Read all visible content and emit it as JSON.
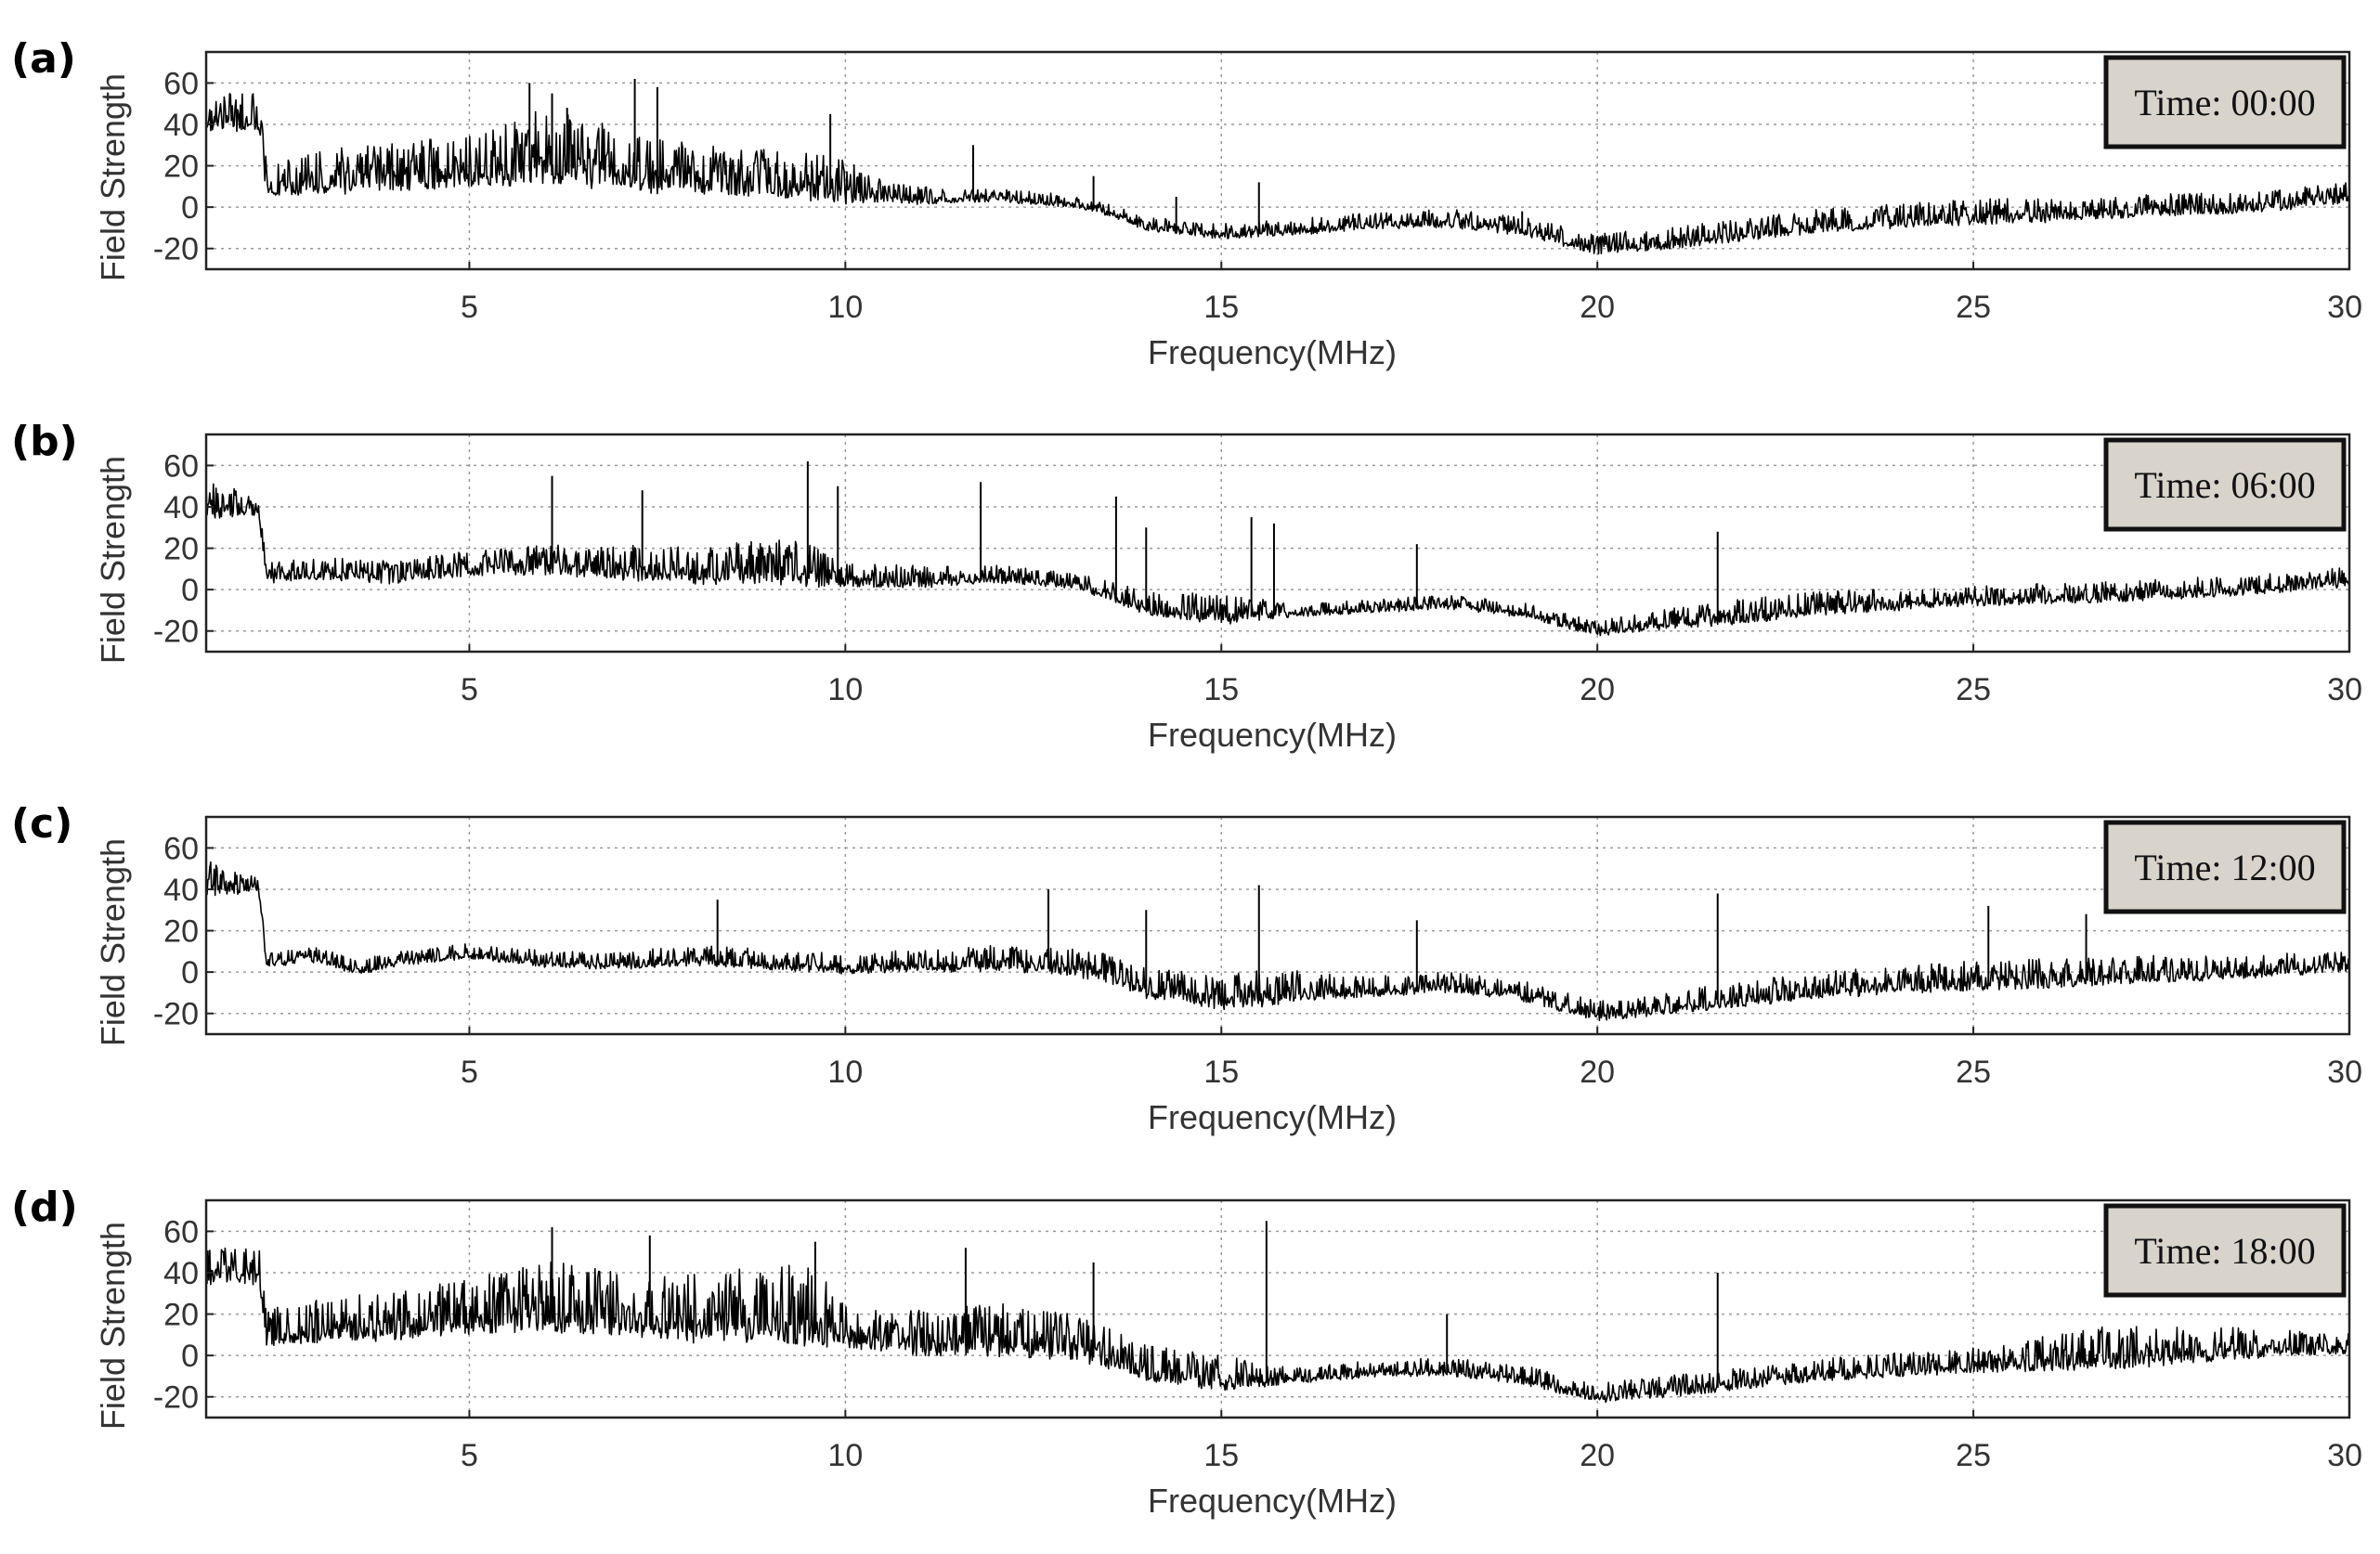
{
  "chart_data": [
    {
      "type": "line",
      "panel_label": "(a)",
      "annotation": "Time: 00:00",
      "xlabel": "Frequency(MHz)",
      "ylabel": "Field Strength",
      "xlim": [
        1.5,
        30
      ],
      "ylim": [
        -30,
        75
      ],
      "xticks": [
        5,
        10,
        15,
        20,
        25,
        30
      ],
      "yticks": [
        -20,
        0,
        20,
        40,
        60
      ],
      "grid": true,
      "baseline": [
        [
          1.5,
          40
        ],
        [
          2.2,
          40
        ],
        [
          2.3,
          8
        ],
        [
          3,
          10
        ],
        [
          4,
          12
        ],
        [
          5,
          15
        ],
        [
          6,
          18
        ],
        [
          7,
          14
        ],
        [
          7.5,
          12
        ],
        [
          8,
          10
        ],
        [
          9,
          9
        ],
        [
          10,
          6
        ],
        [
          11,
          3
        ],
        [
          12,
          4
        ],
        [
          13,
          1
        ],
        [
          13.5,
          -3
        ],
        [
          14,
          -10
        ],
        [
          15,
          -14
        ],
        [
          16,
          -12
        ],
        [
          17,
          -9
        ],
        [
          18,
          -8
        ],
        [
          19,
          -12
        ],
        [
          20,
          -21
        ],
        [
          21,
          -18
        ],
        [
          22,
          -14
        ],
        [
          23,
          -10
        ],
        [
          24,
          -8
        ],
        [
          25,
          -6
        ],
        [
          26,
          -5
        ],
        [
          27,
          -3
        ],
        [
          28,
          -2
        ],
        [
          29,
          0
        ],
        [
          30,
          4
        ]
      ],
      "noise": [
        [
          1.5,
          15
        ],
        [
          2.3,
          15
        ],
        [
          3,
          18
        ],
        [
          5,
          20
        ],
        [
          6,
          30
        ],
        [
          7.5,
          22
        ],
        [
          10,
          18
        ],
        [
          10.5,
          8
        ],
        [
          12,
          5
        ],
        [
          13,
          5
        ],
        [
          15,
          6
        ],
        [
          20,
          8
        ],
        [
          25,
          10
        ],
        [
          30,
          8
        ]
      ],
      "spikes": [
        [
          5.8,
          60
        ],
        [
          6.1,
          55
        ],
        [
          6.3,
          48
        ],
        [
          7.2,
          62
        ],
        [
          7.5,
          58
        ],
        [
          9.8,
          45
        ],
        [
          11.7,
          30
        ],
        [
          13.3,
          15
        ],
        [
          14.4,
          5
        ],
        [
          15.5,
          12
        ],
        [
          19,
          -2
        ]
      ]
    },
    {
      "type": "line",
      "panel_label": "(b)",
      "annotation": "Time: 06:00",
      "xlabel": "Frequency(MHz)",
      "ylabel": "Field Strength",
      "xlim": [
        1.5,
        30
      ],
      "ylim": [
        -30,
        75
      ],
      "xticks": [
        5,
        10,
        15,
        20,
        25,
        30
      ],
      "yticks": [
        -20,
        0,
        20,
        40,
        60
      ],
      "grid": true,
      "baseline": [
        [
          1.5,
          38
        ],
        [
          2.2,
          38
        ],
        [
          2.3,
          5
        ],
        [
          3,
          7
        ],
        [
          4,
          5
        ],
        [
          5,
          9
        ],
        [
          6,
          10
        ],
        [
          7,
          8
        ],
        [
          8,
          6
        ],
        [
          9,
          7
        ],
        [
          10,
          4
        ],
        [
          11,
          3
        ],
        [
          12,
          5
        ],
        [
          13,
          2
        ],
        [
          13.5,
          -3
        ],
        [
          14,
          -10
        ],
        [
          15,
          -14
        ],
        [
          16,
          -12
        ],
        [
          17,
          -10
        ],
        [
          18,
          -8
        ],
        [
          19,
          -12
        ],
        [
          20,
          -21
        ],
        [
          21,
          -17
        ],
        [
          22,
          -14
        ],
        [
          23,
          -10
        ],
        [
          24,
          -8
        ],
        [
          25,
          -6
        ],
        [
          26,
          -5
        ],
        [
          27,
          -4
        ],
        [
          28,
          -2
        ],
        [
          29,
          0
        ],
        [
          30,
          3
        ]
      ],
      "noise": [
        [
          1.5,
          15
        ],
        [
          2.3,
          8
        ],
        [
          5,
          10
        ],
        [
          9.5,
          18
        ],
        [
          10,
          10
        ],
        [
          13,
          6
        ],
        [
          15,
          12
        ],
        [
          16,
          5
        ],
        [
          20,
          6
        ],
        [
          22,
          10
        ],
        [
          25,
          8
        ],
        [
          30,
          8
        ]
      ],
      "spikes": [
        [
          6.1,
          55
        ],
        [
          7.3,
          48
        ],
        [
          9.5,
          62
        ],
        [
          9.9,
          50
        ],
        [
          11.8,
          52
        ],
        [
          13.6,
          45
        ],
        [
          14.0,
          30
        ],
        [
          15.4,
          35
        ],
        [
          15.7,
          32
        ],
        [
          17.6,
          22
        ],
        [
          21.6,
          28
        ]
      ]
    },
    {
      "type": "line",
      "panel_label": "(c)",
      "annotation": "Time: 12:00",
      "xlabel": "Frequency(MHz)",
      "ylabel": "Field Strength",
      "xlim": [
        1.5,
        30
      ],
      "ylim": [
        -30,
        75
      ],
      "xticks": [
        5,
        10,
        15,
        20,
        25,
        30
      ],
      "yticks": [
        -20,
        0,
        20,
        40,
        60
      ],
      "grid": true,
      "baseline": [
        [
          1.5,
          40
        ],
        [
          2.2,
          40
        ],
        [
          2.3,
          4
        ],
        [
          3,
          6
        ],
        [
          3.5,
          0
        ],
        [
          4,
          4
        ],
        [
          5,
          8
        ],
        [
          6,
          4
        ],
        [
          7,
          3
        ],
        [
          8,
          5
        ],
        [
          9,
          3
        ],
        [
          10,
          1
        ],
        [
          11,
          2
        ],
        [
          12,
          3
        ],
        [
          13,
          1
        ],
        [
          13.5,
          -3
        ],
        [
          14,
          -10
        ],
        [
          15,
          -15
        ],
        [
          16,
          -12
        ],
        [
          17,
          -10
        ],
        [
          18,
          -8
        ],
        [
          19,
          -12
        ],
        [
          20,
          -22
        ],
        [
          21,
          -18
        ],
        [
          22,
          -14
        ],
        [
          23,
          -10
        ],
        [
          24,
          -8
        ],
        [
          25,
          -6
        ],
        [
          26,
          -5
        ],
        [
          27,
          -3
        ],
        [
          28,
          -2
        ],
        [
          29,
          0
        ],
        [
          30,
          2
        ]
      ],
      "noise": [
        [
          1.5,
          15
        ],
        [
          2.3,
          6
        ],
        [
          5,
          6
        ],
        [
          8,
          8
        ],
        [
          10,
          8
        ],
        [
          12,
          10
        ],
        [
          14,
          12
        ],
        [
          15.5,
          15
        ],
        [
          17,
          8
        ],
        [
          20,
          8
        ],
        [
          22,
          10
        ],
        [
          26,
          12
        ],
        [
          28,
          10
        ],
        [
          30,
          8
        ]
      ],
      "spikes": [
        [
          8.3,
          35
        ],
        [
          12.7,
          40
        ],
        [
          14.0,
          30
        ],
        [
          15.5,
          42
        ],
        [
          17.6,
          25
        ],
        [
          21.6,
          38
        ],
        [
          25.2,
          32
        ],
        [
          26.5,
          28
        ]
      ]
    },
    {
      "type": "line",
      "panel_label": "(d)",
      "annotation": "Time: 18:00",
      "xlabel": "Frequency(MHz)",
      "ylabel": "Field Strength",
      "xlim": [
        1.5,
        30
      ],
      "ylim": [
        -30,
        75
      ],
      "xticks": [
        5,
        10,
        15,
        20,
        25,
        30
      ],
      "yticks": [
        -20,
        0,
        20,
        40,
        60
      ],
      "grid": true,
      "baseline": [
        [
          1.5,
          38
        ],
        [
          2.2,
          38
        ],
        [
          2.3,
          8
        ],
        [
          3,
          10
        ],
        [
          4,
          12
        ],
        [
          5,
          15
        ],
        [
          6,
          18
        ],
        [
          7,
          16
        ],
        [
          8,
          12
        ],
        [
          9,
          14
        ],
        [
          10,
          8
        ],
        [
          11,
          4
        ],
        [
          12,
          5
        ],
        [
          13,
          2
        ],
        [
          13.5,
          -3
        ],
        [
          14,
          -10
        ],
        [
          15,
          -14
        ],
        [
          16,
          -12
        ],
        [
          17,
          -9
        ],
        [
          18,
          -8
        ],
        [
          19,
          -12
        ],
        [
          20,
          -21
        ],
        [
          21,
          -18
        ],
        [
          22,
          -14
        ],
        [
          23,
          -10
        ],
        [
          24,
          -8
        ],
        [
          25,
          -6
        ],
        [
          26,
          -4
        ],
        [
          27,
          -2
        ],
        [
          28,
          0
        ],
        [
          29,
          2
        ],
        [
          30,
          3
        ]
      ],
      "noise": [
        [
          1.5,
          15
        ],
        [
          2.3,
          15
        ],
        [
          5,
          22
        ],
        [
          6,
          28
        ],
        [
          7.3,
          26
        ],
        [
          9.6,
          32
        ],
        [
          10.3,
          15
        ],
        [
          12,
          22
        ],
        [
          13.5,
          16
        ],
        [
          15,
          14
        ],
        [
          16,
          6
        ],
        [
          20,
          8
        ],
        [
          25,
          10
        ],
        [
          27,
          18
        ],
        [
          28,
          14
        ],
        [
          30,
          8
        ]
      ],
      "spikes": [
        [
          6.1,
          62
        ],
        [
          7.4,
          58
        ],
        [
          9.6,
          55
        ],
        [
          11.6,
          52
        ],
        [
          13.3,
          45
        ],
        [
          15.6,
          65
        ],
        [
          18.0,
          20
        ],
        [
          21.6,
          40
        ]
      ]
    }
  ]
}
